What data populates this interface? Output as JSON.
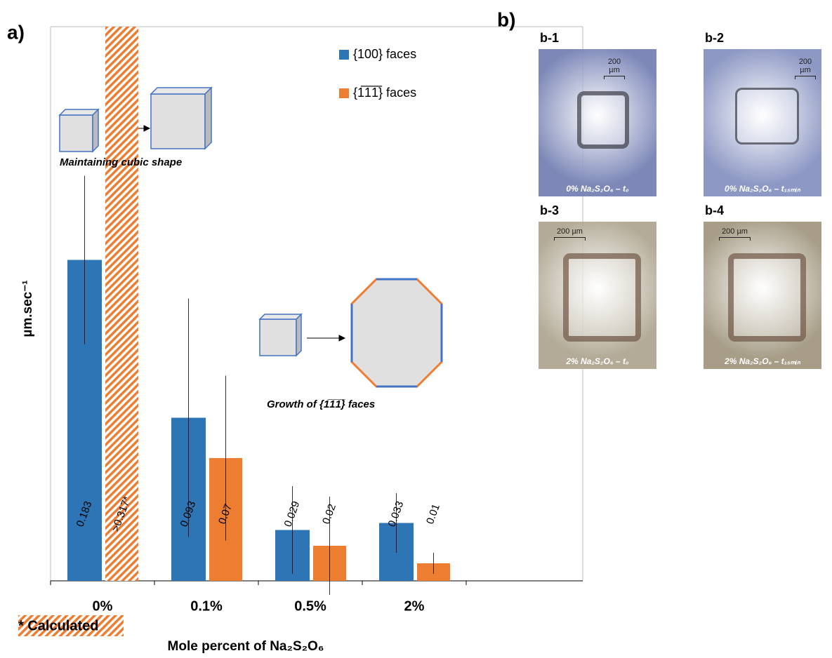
{
  "chart_data": {
    "type": "bar",
    "panel_label": "a)",
    "y_label": "µm.sec⁻¹",
    "x_label": "Mole percent of Na₂S₂O₆",
    "categories": [
      "0%",
      "0.1%",
      "0.5%",
      "2%"
    ],
    "ylim": [
      0,
      0.316
    ],
    "series": [
      {
        "name": "{100} faces",
        "color": "#2e75b6",
        "values": [
          0.183,
          0.093,
          0.029,
          0.033
        ],
        "errors": [
          0.048,
          0.068,
          0.025,
          0.017
        ],
        "hatched": [
          false,
          false,
          false,
          false
        ]
      },
      {
        "name": "{1̅1̅1̅} faces",
        "color": "#ed7d31",
        "values": [
          0.317,
          0.07,
          0.02,
          0.01
        ],
        "value_labels": [
          ">0.317*",
          "0.07",
          "0.02",
          "0.01"
        ],
        "errors": [
          null,
          0.047,
          0.028,
          0.006
        ],
        "hatched": [
          true,
          false,
          false,
          false
        ]
      }
    ],
    "note": "* Calculated",
    "annotations": [
      "Maintaining cubic shape",
      "Growth of {1̅1̅1̅} faces"
    ]
  },
  "images": {
    "panel_label": "b)",
    "panels": [
      {
        "label": "b-1",
        "caption": "0% Na₂S₂O₆ – t₀",
        "scale": "200 µm",
        "background": "#7d88b8"
      },
      {
        "label": "b-2",
        "caption": "0% Na₂S₂O₆ – t₁₅ₘᵢₙ",
        "scale": "200 µm",
        "background": "#8d98c4"
      },
      {
        "label": "b-3",
        "caption": "2% Na₂S₂O₆ – t₀",
        "scale": "200 µm",
        "background": "#b3ab97"
      },
      {
        "label": "b-4",
        "caption": "2% Na₂S₂O₆ – t₁₅ₘᵢₙ",
        "scale": "200 µm",
        "background": "#a89e88"
      }
    ]
  }
}
